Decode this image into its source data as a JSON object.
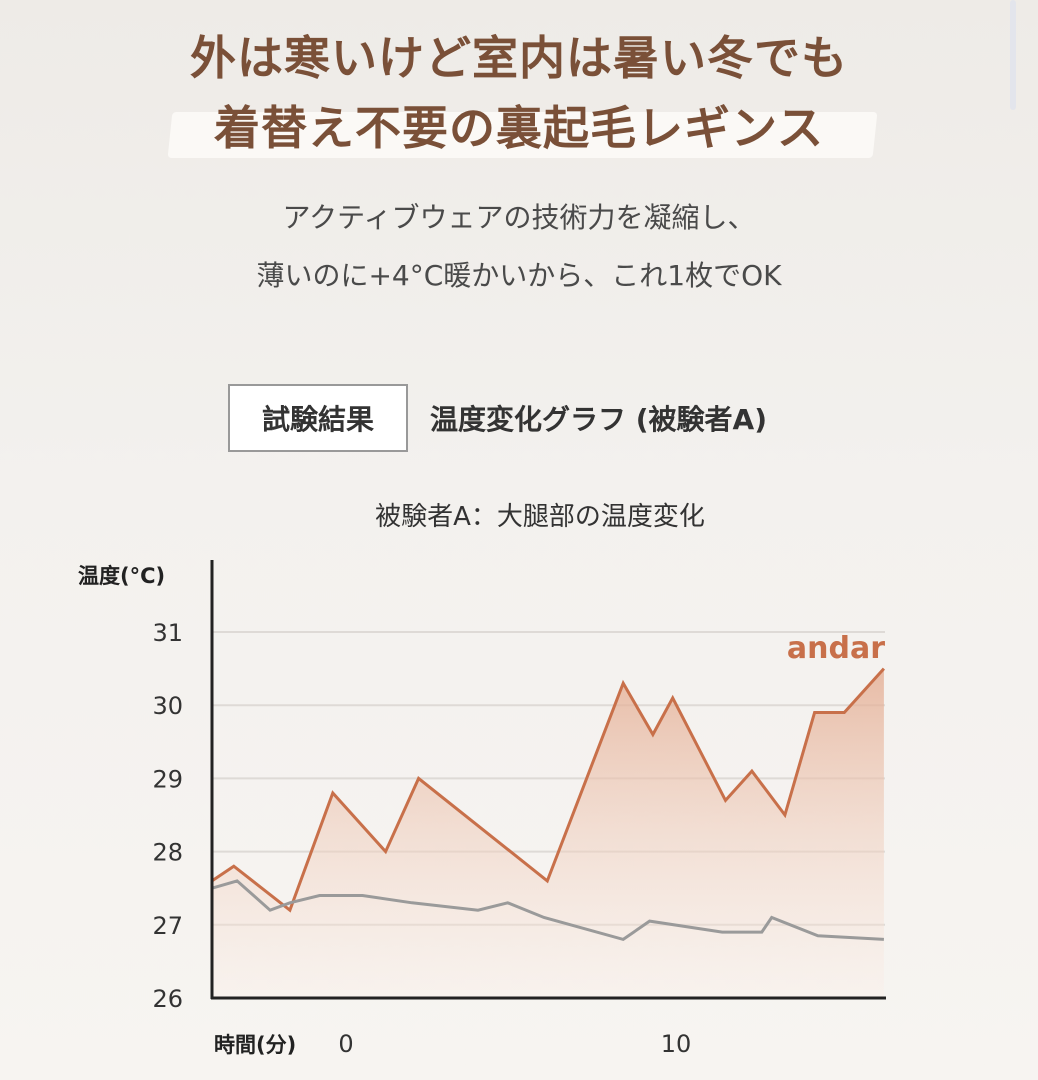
{
  "header": {
    "headline_line1": "外は寒いけど室内は暑い冬でも",
    "headline_line2": "着替え不要の裏起毛レギンス",
    "sub_line1": "アクティブウェアの技術力を凝縮し、",
    "sub_line2": "薄いのに+4°C暖かいから、これ1枚でOK"
  },
  "section": {
    "badge": "試験結果",
    "title": "温度変化グラフ (被験者A)"
  },
  "colors": {
    "headline": "#7a5038",
    "andar": "#c8704a",
    "comparison": "#9a9a9a",
    "fill": "#e9b9a2"
  },
  "chart_data": {
    "type": "line",
    "title": "被験者A：大腿部の温度変化",
    "xlabel": "時間(分)",
    "ylabel": "温度(°C)",
    "ylim": [
      26,
      31
    ],
    "xlim": [
      -4.1,
      16.3
    ],
    "yticks": [
      "26",
      "27",
      "28",
      "29",
      "30",
      "31"
    ],
    "xticks": [
      {
        "value": 0,
        "label": "0"
      },
      {
        "value": 10,
        "label": "10"
      }
    ],
    "grid": true,
    "series": [
      {
        "name": "andar",
        "color": "#c8704a",
        "fill": true,
        "points": [
          [
            -4.1,
            27.6
          ],
          [
            -3.4,
            27.8
          ],
          [
            -1.7,
            27.2
          ],
          [
            -0.4,
            28.8
          ],
          [
            1.2,
            28.0
          ],
          [
            2.2,
            29.0
          ],
          [
            6.1,
            27.6
          ],
          [
            8.4,
            30.3
          ],
          [
            9.3,
            29.6
          ],
          [
            9.9,
            30.1
          ],
          [
            11.5,
            28.7
          ],
          [
            12.3,
            29.1
          ],
          [
            13.3,
            28.5
          ],
          [
            14.2,
            29.9
          ],
          [
            15.1,
            29.9
          ],
          [
            16.3,
            30.5
          ]
        ]
      },
      {
        "color": "#9a9a9a",
        "fill": false,
        "points": [
          [
            -4.1,
            27.5
          ],
          [
            -3.3,
            27.6
          ],
          [
            -2.3,
            27.2
          ],
          [
            -1.7,
            27.3
          ],
          [
            -0.8,
            27.4
          ],
          [
            0.5,
            27.4
          ],
          [
            2.0,
            27.3
          ],
          [
            4.0,
            27.2
          ],
          [
            4.9,
            27.3
          ],
          [
            6.0,
            27.1
          ],
          [
            8.4,
            26.8
          ],
          [
            9.2,
            27.05
          ],
          [
            11.4,
            26.9
          ],
          [
            12.6,
            26.9
          ],
          [
            12.9,
            27.1
          ],
          [
            14.3,
            26.85
          ],
          [
            16.3,
            26.8
          ]
        ]
      }
    ]
  }
}
